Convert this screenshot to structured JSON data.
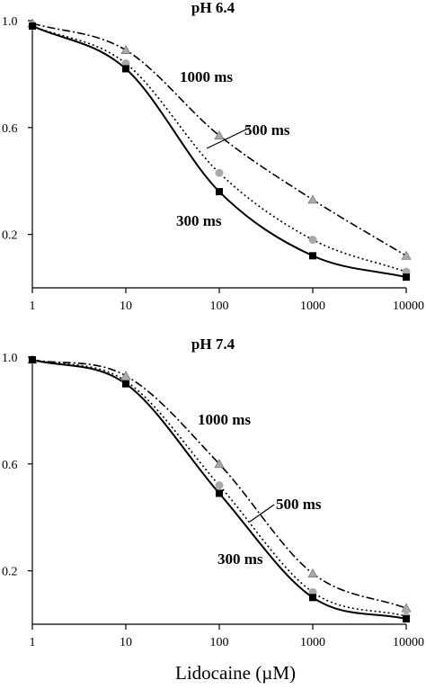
{
  "chart_data": [
    {
      "type": "line",
      "title": "pH 6.4",
      "xscale": "log",
      "xlim": [
        1,
        10000
      ],
      "ylim": [
        0,
        1
      ],
      "x_tick_labels": [
        "1",
        "10",
        "100",
        "1000",
        "10000"
      ],
      "y_tick_labels": [
        "1.0",
        "0.6",
        "0.2"
      ],
      "x": [
        1,
        10,
        100,
        1000,
        10000
      ],
      "series": [
        {
          "name": "1000 ms",
          "style": "dash-dot",
          "marker": "triangle",
          "marker_color": "#a9a9a9",
          "values": [
            0.99,
            0.89,
            0.57,
            0.33,
            0.12
          ]
        },
        {
          "name": "500 ms",
          "style": "dotted",
          "marker": "circle",
          "marker_color": "#a9a9a9",
          "values": [
            0.98,
            0.84,
            0.43,
            0.18,
            0.06
          ]
        },
        {
          "name": "300 ms",
          "style": "solid",
          "marker": "square",
          "marker_color": "#000000",
          "values": [
            0.98,
            0.82,
            0.36,
            0.12,
            0.04
          ]
        }
      ],
      "annotations": [
        "1000 ms",
        "500 ms",
        "300 ms"
      ]
    },
    {
      "type": "line",
      "title": "pH 7.4",
      "xscale": "log",
      "xlim": [
        1,
        10000
      ],
      "ylim": [
        0,
        1
      ],
      "x_tick_labels": [
        "1",
        "10",
        "100",
        "1000",
        "10000"
      ],
      "y_tick_labels": [
        "1.0",
        "0.6",
        "0.2"
      ],
      "x": [
        1,
        10,
        100,
        1000,
        10000
      ],
      "series": [
        {
          "name": "1000 ms",
          "style": "dash-dot",
          "marker": "triangle",
          "marker_color": "#a9a9a9",
          "values": [
            0.99,
            0.93,
            0.6,
            0.19,
            0.06
          ]
        },
        {
          "name": "500 ms",
          "style": "dotted",
          "marker": "circle",
          "marker_color": "#a9a9a9",
          "values": [
            0.99,
            0.91,
            0.52,
            0.12,
            0.03
          ]
        },
        {
          "name": "300 ms",
          "style": "solid",
          "marker": "square",
          "marker_color": "#000000",
          "values": [
            0.99,
            0.9,
            0.49,
            0.1,
            0.02
          ]
        }
      ],
      "annotations": [
        "1000 ms",
        "500 ms",
        "300 ms"
      ]
    }
  ],
  "xlabel": "Lidocaine (µM)"
}
